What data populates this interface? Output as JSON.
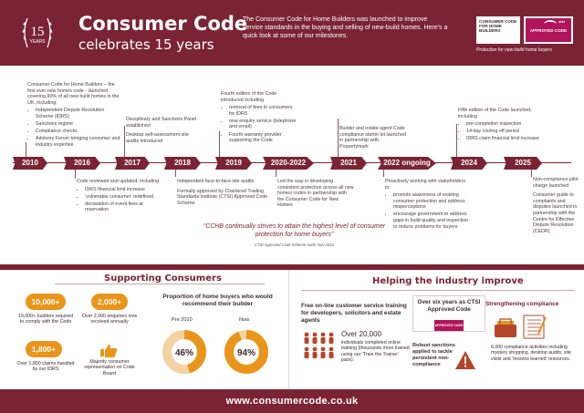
{
  "header": {
    "badge_number": "15",
    "badge_years": "YEARS",
    "title_line1": "Consumer Code",
    "title_line2": "celebrates 15 years",
    "intro": "The Consumer Code for Home Builders was launched to improve service standards in the buying and selling of new-build homes. Here’s a quick look at some of our milestones.",
    "logo_cc": "CONSUMER CODE FOR HOME BUILDERS",
    "logo_ctsi_top": "ctsi",
    "logo_ctsi": "APPROVED CODE",
    "tagline": "Protection for new-build home buyers"
  },
  "timeline": {
    "years": [
      "2010",
      "2016",
      "2017",
      "2018",
      "2019",
      "2020-2022",
      "2021",
      "2022 ongoing",
      "2024",
      "2025"
    ],
    "m2010": {
      "text": "Consumer Code for Home Builders – the first ever new homes code - launched covering 90% of all new build homes in the UK, including:",
      "bullets": [
        "Independent Dispute Resolution Scheme (IDRS)",
        "Sanctions regime",
        "Compliance checks",
        "Advisory Forum bringing consumer and industry expertise"
      ]
    },
    "m2016": {
      "text": "Code reviewed and updated, including:",
      "bullets": [
        "IDRS financial limit increase",
        "‘vulnerable consumer’ redefined",
        "declaration of event fees at reservation"
      ]
    },
    "m2017": {
      "p1": "Disciplinary and Sanctions Panel established",
      "p2": "Desktop self-assessment site audits introduced"
    },
    "m2018": {
      "p1": "Independent face-to-face site audits",
      "p2": "Formally approved by Chartered Trading Standards Institute (CTSI) Approved Code Scheme"
    },
    "m2019": {
      "text": "Fourth edition of the Code introduced including",
      "bullets": [
        "removal of fees to consumers for IDRS",
        "new enquiry service (telephone and email)",
        "Fourth warranty provider supporting the Code"
      ]
    },
    "m2020": {
      "text": "Led the way in developing consistent protection across all new homes codes in partnership with the Consumer Code for New Homes"
    },
    "m2021": {
      "text": "Builder and estate agent Code compliance starter kit launched in partnership with Propertymark"
    },
    "m2022": {
      "text": "Proactively working with stakeholders to:",
      "bullets": [
        "promote awareness of existing consumer protection and address misperceptions",
        "encourage government to address gaps in build quality and inspection to reduce problems for buyers"
      ]
    },
    "m2024": {
      "text": "Fifth edition of the Code launched, including",
      "bullets": [
        "pre-completion inspection",
        "14-day cooling off period",
        "IDRS claim financial limit increase"
      ]
    },
    "m2025": {
      "p1": "Non-compliance pilot charge launched",
      "p2": "Consumer guide to complaints and disputes launched in partnership with the Centre for Effective Dispute Resolution (CEDR)"
    },
    "quote": "“CCHB continually strives to attain the highest level of consumer protection for home buyers”",
    "quote_source": "CTSI Approved Code Scheme Audit, Nov 2024"
  },
  "supporting": {
    "title": "Supporting Consumers",
    "builders_value": "10,000+",
    "builders_text": "10,000+ builders required to comply with the Code",
    "enquiries_value": "2,000+",
    "enquiries_text": "Over 2,000 enquiries now received annually",
    "claims_value": "1,800+",
    "claims_text": "Over 1,800 claims handled by our IDRS",
    "board_text": "Majority consumer representation on Code Board",
    "proportion_title": "Proportion of home buyers who would recommend their builder",
    "pie_pre_label": "Pre 2010",
    "pie_now_label": "Now",
    "pie_pre_value": "46%",
    "pie_now_value": "94%",
    "pie_pre_fraction": 0.46,
    "pie_now_fraction": 0.94
  },
  "helping": {
    "title": "Helping the industry improve",
    "training_head": "Free on-line customer service training for developers, solicitors and estate agents",
    "training_number": "Over 20,000",
    "training_text": "individuals completed online training (thousands more trained using our ‘Train the Trainer’ pack).",
    "ctsi_head": "Over six years as CTSI Approved Code",
    "ctsi_logo": "APPROVED CODE",
    "sanctions_head": "Robust sanctions applied to tackle persistent non-compliance",
    "compliance_head": "Strengthening compliance",
    "compliance_text": "6,000 compliance activities including mystery shopping, desktop audits, site visits and ‘lessons learned’ resources."
  },
  "footer": {
    "url": "www.consumercode.co.uk"
  },
  "colors": {
    "maroon": "#7a2334",
    "orange": "#e8951a",
    "ctsi_pink": "#b0145a"
  }
}
